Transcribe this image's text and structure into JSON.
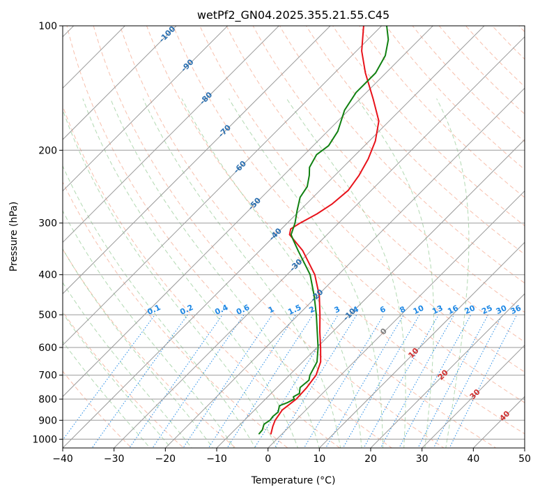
{
  "chart_data": {
    "type": "line",
    "subtype": "skew-t log-p diagram",
    "title": "wetPf2_GN04.2025.355.21.55.C45",
    "xlabel": "Temperature (°C)",
    "ylabel": "Pressure (hPa)",
    "xlim": [
      -40,
      50
    ],
    "ylim": [
      1050,
      100
    ],
    "y_scale": "log",
    "grid": true,
    "x_ticks": [
      -40,
      -30,
      -20,
      -10,
      0,
      10,
      20,
      30,
      40,
      50
    ],
    "y_ticks": [
      100,
      200,
      300,
      400,
      500,
      600,
      700,
      800,
      900,
      1000
    ],
    "colors": {
      "temperature": "#e8121a",
      "dewpoint": "#108010",
      "isotherm": "#9a9a9a",
      "dry_adiabat": "#f29c80",
      "moist_adiabat": "#7fc07f",
      "mixing_ratio": "#1e88e5",
      "mixing_label": "#1e88e5",
      "isotherm_label": "#2a6fb0",
      "dry_label": "#d03030",
      "grey_label": "#808080"
    },
    "series": [
      {
        "points": [
          [
            970,
            -2.2
          ],
          [
            930,
            -3.3
          ],
          [
            900,
            -4.0
          ],
          [
            850,
            -4.6
          ],
          [
            800,
            -4.0
          ],
          [
            750,
            -4.2
          ],
          [
            700,
            -4.8
          ],
          [
            650,
            -6.5
          ],
          [
            600,
            -9.3
          ],
          [
            550,
            -12.5
          ],
          [
            500,
            -15.8
          ],
          [
            450,
            -19.6
          ],
          [
            400,
            -24.6
          ],
          [
            350,
            -31.6
          ],
          [
            320,
            -37.3
          ],
          [
            310,
            -38.2
          ],
          [
            300,
            -37.5
          ],
          [
            285,
            -36.0
          ],
          [
            270,
            -35.0
          ],
          [
            250,
            -34.5
          ],
          [
            230,
            -35.3
          ],
          [
            210,
            -36.7
          ],
          [
            190,
            -38.8
          ],
          [
            170,
            -42.0
          ],
          [
            150,
            -47.5
          ],
          [
            130,
            -54.0
          ],
          [
            115,
            -59.0
          ],
          [
            100,
            -63.5
          ]
        ]
      },
      {
        "points": [
          [
            970,
            -4.5
          ],
          [
            950,
            -4.6
          ],
          [
            920,
            -5.4
          ],
          [
            900,
            -5.0
          ],
          [
            880,
            -5.2
          ],
          [
            860,
            -5.0
          ],
          [
            830,
            -6.0
          ],
          [
            815,
            -5.0
          ],
          [
            800,
            -4.4
          ],
          [
            790,
            -5.0
          ],
          [
            775,
            -4.5
          ],
          [
            750,
            -5.5
          ],
          [
            720,
            -5.2
          ],
          [
            700,
            -6.0
          ],
          [
            650,
            -7.2
          ],
          [
            600,
            -9.8
          ],
          [
            550,
            -13.0
          ],
          [
            500,
            -16.5
          ],
          [
            450,
            -20.6
          ],
          [
            400,
            -25.5
          ],
          [
            350,
            -32.5
          ],
          [
            330,
            -35.5
          ],
          [
            320,
            -37.0
          ],
          [
            300,
            -38.5
          ],
          [
            280,
            -40.5
          ],
          [
            260,
            -42.5
          ],
          [
            245,
            -43.2
          ],
          [
            230,
            -45.0
          ],
          [
            220,
            -46.5
          ],
          [
            205,
            -47.6
          ],
          [
            195,
            -47.0
          ],
          [
            180,
            -48.0
          ],
          [
            160,
            -50.8
          ],
          [
            145,
            -52.0
          ],
          [
            130,
            -52.0
          ],
          [
            118,
            -53.5
          ],
          [
            108,
            -56.0
          ],
          [
            100,
            -59.0
          ]
        ]
      }
    ],
    "isotherm_labels": [
      "-100",
      "-90",
      "-80",
      "-70",
      "-60",
      "-50",
      "-40",
      "-30",
      "-20",
      "-10",
      "0",
      "10",
      "20",
      "30",
      "40"
    ],
    "mixing_ratio_labels": [
      "0.1",
      "0.2",
      "0.4",
      "0.6",
      "1",
      "1.5",
      "2",
      "3",
      "4",
      "6",
      "8",
      "10",
      "13",
      "16",
      "20",
      "25",
      "30",
      "36"
    ]
  }
}
